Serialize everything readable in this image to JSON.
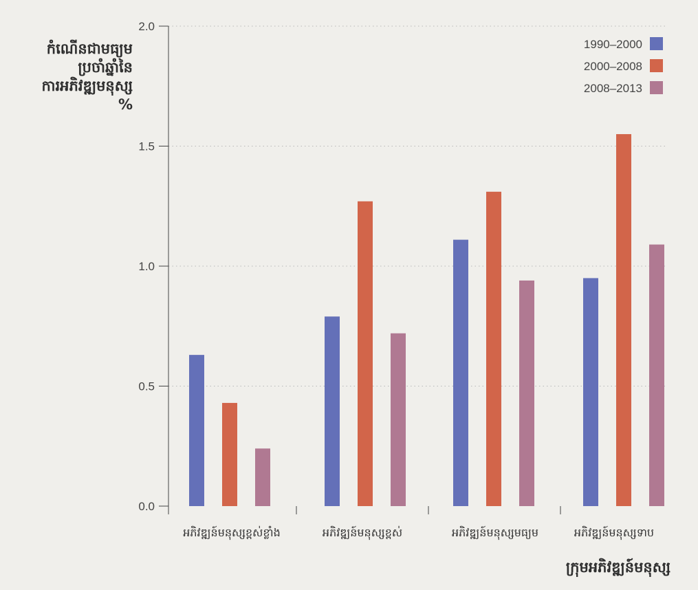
{
  "chart_data": {
    "type": "bar",
    "title": "",
    "ylabel_lines": [
      "កំណើនជាមធ្យម",
      "ប្រចាំឆ្នាំនៃ",
      "ការអភិវឌ្ឍមនុស្ស",
      "%"
    ],
    "xlabel": "ក្រុមអភិវឌ្ឍន៍មនុស្ស",
    "categories": [
      "អភិវឌ្ឍន៍មនុស្សខ្ពស់ខ្លាំង",
      "អភិវឌ្ឍន៍មនុស្សខ្ពស់",
      "អភិវឌ្ឍន៍មនុស្សមធ្យម",
      "អភិវឌ្ឍន៍មនុស្សទាប"
    ],
    "series": [
      {
        "name": "1990–2000",
        "color": "#6470b8",
        "values": [
          0.63,
          0.79,
          1.11,
          0.95
        ]
      },
      {
        "name": "2000–2008",
        "color": "#d2654a",
        "values": [
          0.43,
          1.27,
          1.31,
          1.55
        ]
      },
      {
        "name": "2008–2013",
        "color": "#b07992",
        "values": [
          0.24,
          0.72,
          0.94,
          1.09
        ]
      }
    ],
    "ylim": [
      0,
      2.0
    ],
    "yticks": [
      "0.0",
      "0.5",
      "1.0",
      "1.5",
      "2.0"
    ],
    "grid": true,
    "legend_position": "top-right"
  }
}
